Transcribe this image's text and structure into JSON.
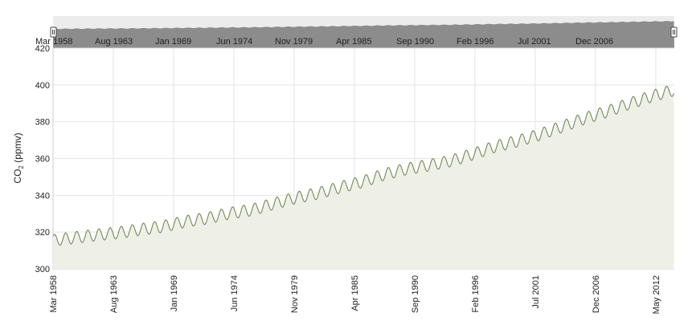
{
  "colors": {
    "line": "#6b7d4a",
    "area": "#eef0e8",
    "grid": "#e4e4e4",
    "navigator_bg": "#ececec",
    "navigator_area": "#8c8c8c"
  },
  "navigator": {
    "labels": [
      "Mar 1958",
      "Aug 1963",
      "Jan 1969",
      "Jun 1974",
      "Nov 1979",
      "Apr 1985",
      "Sep 1990",
      "Feb 1996",
      "Jul 2001",
      "Dec 2006"
    ],
    "left_handle_icon": "range-handle-icon",
    "right_handle_icon": "range-handle-icon"
  },
  "chart_data": {
    "type": "area",
    "ylabel_main": "CO",
    "ylabel_sub": "2",
    "ylabel_unit": " (ppmv)",
    "xlabel": "",
    "ylim": [
      300,
      420
    ],
    "y_ticks": [
      300,
      320,
      340,
      360,
      380,
      400,
      420
    ],
    "x_ticks": [
      "Mar 1958",
      "Aug 1963",
      "Jan 1969",
      "Jun 1974",
      "Nov 1979",
      "Apr 1985",
      "Sep 1990",
      "Feb 1996",
      "Jul 2001",
      "Dec 2006",
      "May 2012"
    ],
    "x_tick_years": [
      1958.17,
      1963.58,
      1969.0,
      1974.42,
      1979.83,
      1985.25,
      1990.67,
      1996.08,
      2001.5,
      2006.92,
      2012.33
    ],
    "xlim": [
      1958.17,
      2014.0
    ],
    "grid": true,
    "legend": "none",
    "series": [
      {
        "x": [
          1958.17,
          1960,
          1962,
          1964,
          1966,
          1968,
          1970,
          1972,
          1974,
          1976,
          1978,
          1980,
          1982,
          1984,
          1986,
          1988,
          1990,
          1992,
          1994,
          1996,
          1998,
          2000,
          2002,
          2004,
          2006,
          2008,
          2010,
          2012,
          2014
        ],
        "values": [
          315.5,
          316.9,
          318.4,
          319.6,
          321.4,
          323.0,
          325.7,
          327.5,
          330.2,
          332.0,
          335.4,
          338.7,
          341.1,
          344.4,
          347.4,
          351.5,
          354.4,
          356.4,
          358.8,
          362.6,
          366.7,
          369.6,
          373.2,
          377.5,
          381.9,
          385.6,
          389.9,
          393.9,
          397.3
        ]
      }
    ],
    "seasonal_amplitude": 3.2
  }
}
